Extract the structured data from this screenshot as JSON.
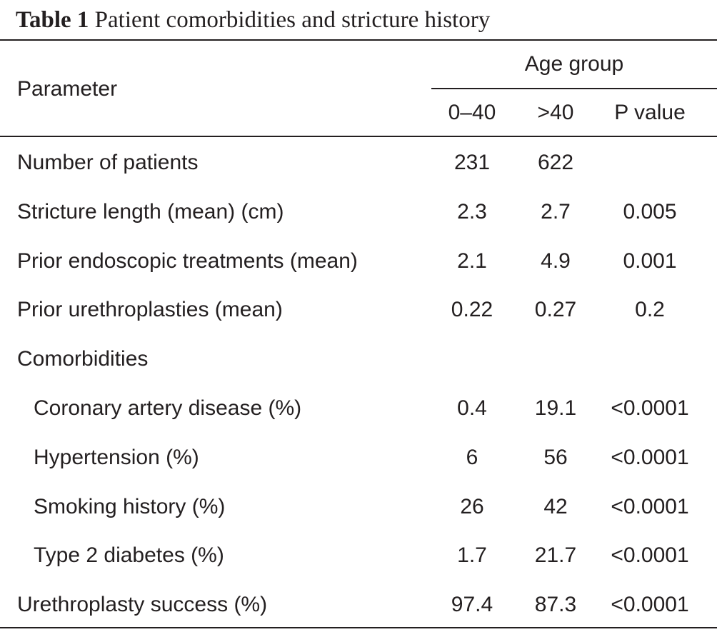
{
  "caption": {
    "label": "Table 1",
    "title": "Patient comorbidities and stricture history"
  },
  "header": {
    "parameter": "Parameter",
    "age_group": "Age group",
    "columns": [
      "0–40",
      ">40",
      "P value"
    ]
  },
  "rows": [
    {
      "label": "Number of patients",
      "indent": false,
      "values": [
        "231",
        "622",
        ""
      ]
    },
    {
      "label": "Stricture length (mean) (cm)",
      "indent": false,
      "values": [
        "2.3",
        "2.7",
        "0.005"
      ]
    },
    {
      "label": "Prior endoscopic treatments (mean)",
      "indent": false,
      "values": [
        "2.1",
        "4.9",
        "0.001"
      ]
    },
    {
      "label": "Prior urethroplasties (mean)",
      "indent": false,
      "values": [
        "0.22",
        "0.27",
        "0.2"
      ]
    },
    {
      "label": "Comorbidities",
      "indent": false,
      "values": [
        "",
        "",
        ""
      ]
    },
    {
      "label": "Coronary artery disease (%)",
      "indent": true,
      "values": [
        "0.4",
        "19.1",
        "<0.0001"
      ]
    },
    {
      "label": "Hypertension (%)",
      "indent": true,
      "values": [
        "6",
        "56",
        "<0.0001"
      ]
    },
    {
      "label": "Smoking history (%)",
      "indent": true,
      "values": [
        "26",
        "42",
        "<0.0001"
      ]
    },
    {
      "label": "Type 2 diabetes (%)",
      "indent": true,
      "values": [
        "1.7",
        "21.7",
        "<0.0001"
      ]
    },
    {
      "label": "Urethroplasty success (%)",
      "indent": false,
      "values": [
        "97.4",
        "87.3",
        "<0.0001"
      ]
    }
  ]
}
